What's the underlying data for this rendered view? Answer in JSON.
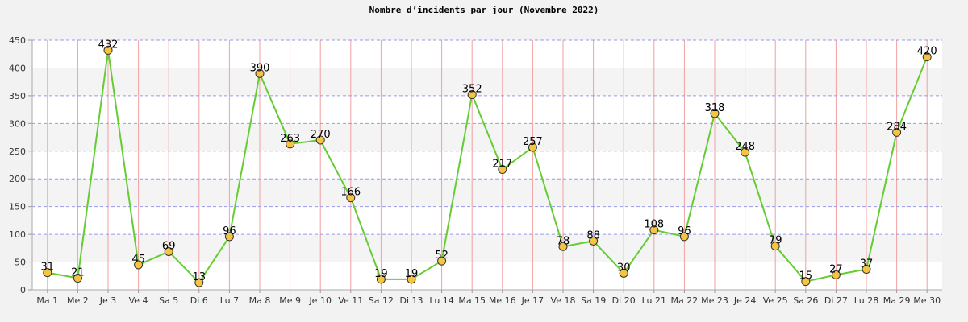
{
  "chart_data": {
    "type": "line",
    "title": "Nombre d’incidents par jour (Novembre 2022)",
    "xlabel": "",
    "ylabel": "",
    "ylim": [
      0,
      450
    ],
    "yticks": [
      0,
      50,
      100,
      150,
      200,
      250,
      300,
      350,
      400,
      450
    ],
    "categories": [
      "Ma 1",
      "Me 2",
      "Je 3",
      "Ve 4",
      "Sa 5",
      "Di 6",
      "Lu 7",
      "Ma 8",
      "Me 9",
      "Je 10",
      "Ve 11",
      "Sa 12",
      "Di 13",
      "Lu 14",
      "Ma 15",
      "Me 16",
      "Je 17",
      "Ve 18",
      "Sa 19",
      "Di 20",
      "Lu 21",
      "Ma 22",
      "Me 23",
      "Je 24",
      "Ve 25",
      "Sa 26",
      "Di 27",
      "Lu 28",
      "Ma 29",
      "Me 30"
    ],
    "series": [
      {
        "values": [
          31,
          21,
          432,
          45,
          69,
          13,
          96,
          390,
          263,
          270,
          166,
          19,
          19,
          52,
          352,
          217,
          257,
          78,
          88,
          30,
          108,
          96,
          318,
          248,
          79,
          15,
          27,
          37,
          284,
          420
        ]
      }
    ],
    "grid": true,
    "colors": {
      "line": "#66cc33",
      "marker_fill": "#f5c542",
      "marker_stroke": "#333333",
      "vgrid": "#f0a0a0",
      "hgrid": "#9999ee",
      "band": "#f4f4f4",
      "plot_bg": "#ffffff"
    }
  }
}
